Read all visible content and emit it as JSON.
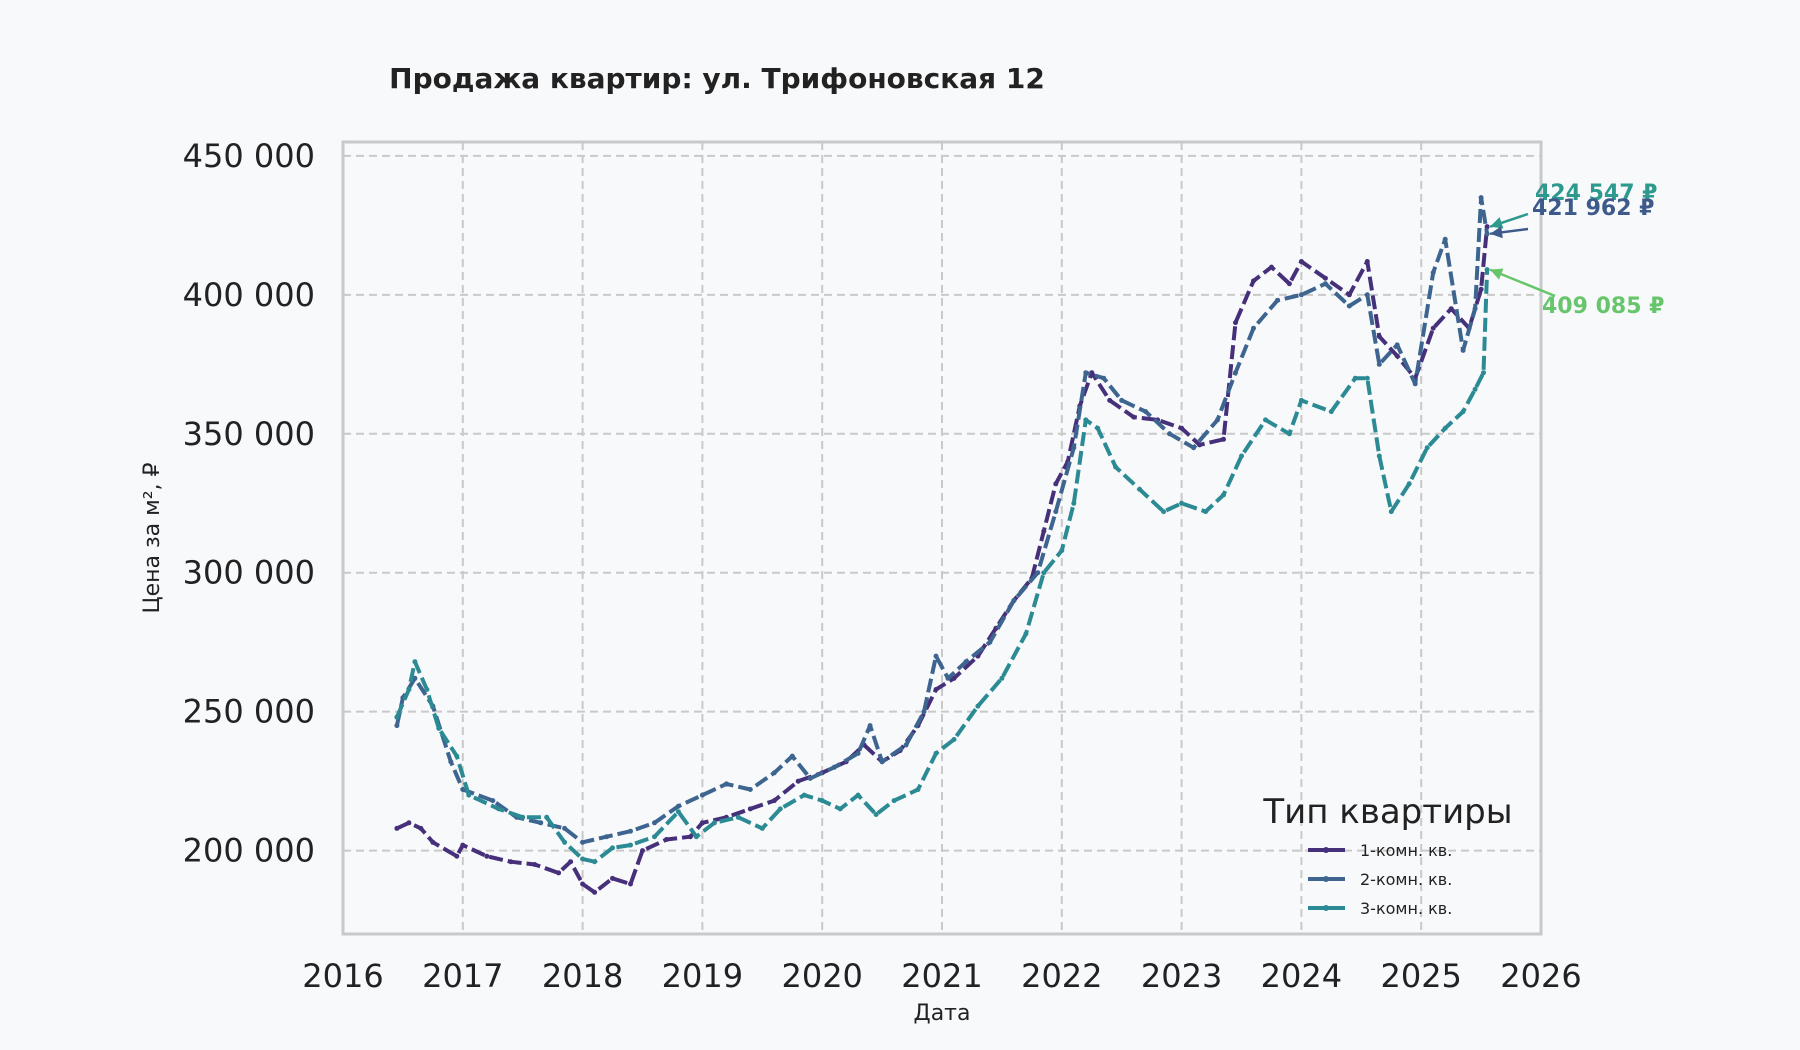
{
  "chart_data": {
    "type": "line",
    "title": "Продажа квартир: ул. Трифоновская 12",
    "xlabel": "Дата",
    "ylabel": "Цена за м², ₽",
    "xlim": [
      2016,
      2026
    ],
    "ylim": [
      170000,
      455000
    ],
    "x_ticks": [
      "2016",
      "2017",
      "2018",
      "2019",
      "2020",
      "2021",
      "2022",
      "2023",
      "2024",
      "2025",
      "2026"
    ],
    "y_ticks": [
      {
        "value": 200000,
        "label": "200 000"
      },
      {
        "value": 250000,
        "label": "250 000"
      },
      {
        "value": 300000,
        "label": "300 000"
      },
      {
        "value": 350000,
        "label": "350 000"
      },
      {
        "value": 400000,
        "label": "400 000"
      },
      {
        "value": 450000,
        "label": "450 000"
      }
    ],
    "grid": true,
    "legend": {
      "title": "Тип квартиры",
      "position": "bottom-right"
    },
    "series": [
      {
        "name": "1-комн. кв.",
        "color": "#46307a",
        "points": [
          [
            2016.45,
            208000
          ],
          [
            2016.55,
            210000
          ],
          [
            2016.65,
            208000
          ],
          [
            2016.75,
            203000
          ],
          [
            2016.95,
            198000
          ],
          [
            2017.0,
            202000
          ],
          [
            2017.2,
            198000
          ],
          [
            2017.4,
            196000
          ],
          [
            2017.6,
            195000
          ],
          [
            2017.8,
            192000
          ],
          [
            2017.9,
            196000
          ],
          [
            2018.0,
            188000
          ],
          [
            2018.1,
            185000
          ],
          [
            2018.25,
            190000
          ],
          [
            2018.4,
            188000
          ],
          [
            2018.5,
            200000
          ],
          [
            2018.7,
            204000
          ],
          [
            2018.9,
            205000
          ],
          [
            2019.0,
            210000
          ],
          [
            2019.2,
            212000
          ],
          [
            2019.4,
            215000
          ],
          [
            2019.6,
            218000
          ],
          [
            2019.8,
            225000
          ],
          [
            2020.0,
            228000
          ],
          [
            2020.2,
            232000
          ],
          [
            2020.35,
            238000
          ],
          [
            2020.5,
            232000
          ],
          [
            2020.65,
            236000
          ],
          [
            2020.8,
            245000
          ],
          [
            2020.95,
            258000
          ],
          [
            2021.1,
            262000
          ],
          [
            2021.3,
            270000
          ],
          [
            2021.45,
            280000
          ],
          [
            2021.6,
            290000
          ],
          [
            2021.75,
            298000
          ],
          [
            2021.85,
            315000
          ],
          [
            2021.95,
            332000
          ],
          [
            2022.05,
            340000
          ],
          [
            2022.15,
            360000
          ],
          [
            2022.25,
            372000
          ],
          [
            2022.4,
            362000
          ],
          [
            2022.6,
            356000
          ],
          [
            2022.8,
            355000
          ],
          [
            2023.0,
            352000
          ],
          [
            2023.15,
            346000
          ],
          [
            2023.35,
            348000
          ],
          [
            2023.45,
            390000
          ],
          [
            2023.6,
            405000
          ],
          [
            2023.75,
            410000
          ],
          [
            2023.9,
            404000
          ],
          [
            2024.0,
            412000
          ],
          [
            2024.2,
            406000
          ],
          [
            2024.4,
            400000
          ],
          [
            2024.55,
            412000
          ],
          [
            2024.65,
            385000
          ],
          [
            2024.8,
            378000
          ],
          [
            2024.95,
            370000
          ],
          [
            2025.1,
            388000
          ],
          [
            2025.25,
            395000
          ],
          [
            2025.4,
            388000
          ],
          [
            2025.5,
            402000
          ],
          [
            2025.55,
            424547
          ]
        ],
        "annotation": {
          "label": "424 547 ₽",
          "value": 424547
        }
      },
      {
        "name": "2-комн. кв.",
        "color": "#3d6590",
        "points": [
          [
            2016.45,
            245000
          ],
          [
            2016.5,
            255000
          ],
          [
            2016.6,
            262000
          ],
          [
            2016.75,
            252000
          ],
          [
            2016.9,
            232000
          ],
          [
            2017.0,
            222000
          ],
          [
            2017.25,
            218000
          ],
          [
            2017.45,
            212000
          ],
          [
            2017.65,
            210000
          ],
          [
            2017.85,
            208000
          ],
          [
            2018.0,
            203000
          ],
          [
            2018.2,
            205000
          ],
          [
            2018.4,
            207000
          ],
          [
            2018.6,
            210000
          ],
          [
            2018.8,
            216000
          ],
          [
            2019.0,
            220000
          ],
          [
            2019.2,
            224000
          ],
          [
            2019.4,
            222000
          ],
          [
            2019.6,
            228000
          ],
          [
            2019.75,
            234000
          ],
          [
            2019.9,
            226000
          ],
          [
            2020.1,
            230000
          ],
          [
            2020.3,
            235000
          ],
          [
            2020.4,
            245000
          ],
          [
            2020.5,
            232000
          ],
          [
            2020.7,
            238000
          ],
          [
            2020.85,
            250000
          ],
          [
            2020.95,
            270000
          ],
          [
            2021.05,
            262000
          ],
          [
            2021.2,
            268000
          ],
          [
            2021.4,
            275000
          ],
          [
            2021.6,
            290000
          ],
          [
            2021.8,
            300000
          ],
          [
            2021.95,
            322000
          ],
          [
            2022.1,
            345000
          ],
          [
            2022.2,
            372000
          ],
          [
            2022.35,
            370000
          ],
          [
            2022.5,
            362000
          ],
          [
            2022.7,
            358000
          ],
          [
            2022.9,
            350000
          ],
          [
            2023.1,
            345000
          ],
          [
            2023.3,
            355000
          ],
          [
            2023.45,
            372000
          ],
          [
            2023.6,
            388000
          ],
          [
            2023.8,
            398000
          ],
          [
            2024.0,
            400000
          ],
          [
            2024.2,
            404000
          ],
          [
            2024.4,
            396000
          ],
          [
            2024.55,
            400000
          ],
          [
            2024.65,
            375000
          ],
          [
            2024.8,
            382000
          ],
          [
            2024.95,
            368000
          ],
          [
            2025.1,
            408000
          ],
          [
            2025.2,
            420000
          ],
          [
            2025.35,
            380000
          ],
          [
            2025.45,
            395000
          ],
          [
            2025.5,
            435000
          ],
          [
            2025.55,
            421962
          ]
        ],
        "annotation": {
          "label": "421 962 ₽",
          "value": 421962
        }
      },
      {
        "name": "3-комн. кв.",
        "color": "#2b8a93",
        "points": [
          [
            2016.45,
            248000
          ],
          [
            2016.55,
            258000
          ],
          [
            2016.6,
            268000
          ],
          [
            2016.7,
            258000
          ],
          [
            2016.8,
            244000
          ],
          [
            2016.95,
            234000
          ],
          [
            2017.05,
            220000
          ],
          [
            2017.3,
            215000
          ],
          [
            2017.5,
            212000
          ],
          [
            2017.7,
            212000
          ],
          [
            2017.85,
            203000
          ],
          [
            2018.0,
            197000
          ],
          [
            2018.1,
            196000
          ],
          [
            2018.25,
            201000
          ],
          [
            2018.4,
            202000
          ],
          [
            2018.6,
            205000
          ],
          [
            2018.8,
            214000
          ],
          [
            2018.95,
            205000
          ],
          [
            2019.1,
            210000
          ],
          [
            2019.3,
            212000
          ],
          [
            2019.5,
            208000
          ],
          [
            2019.65,
            215000
          ],
          [
            2019.85,
            220000
          ],
          [
            2020.0,
            218000
          ],
          [
            2020.15,
            215000
          ],
          [
            2020.3,
            220000
          ],
          [
            2020.45,
            213000
          ],
          [
            2020.6,
            218000
          ],
          [
            2020.8,
            222000
          ],
          [
            2020.95,
            235000
          ],
          [
            2021.1,
            240000
          ],
          [
            2021.3,
            252000
          ],
          [
            2021.5,
            262000
          ],
          [
            2021.7,
            278000
          ],
          [
            2021.85,
            300000
          ],
          [
            2022.0,
            308000
          ],
          [
            2022.1,
            325000
          ],
          [
            2022.2,
            355000
          ],
          [
            2022.3,
            352000
          ],
          [
            2022.45,
            338000
          ],
          [
            2022.65,
            330000
          ],
          [
            2022.85,
            322000
          ],
          [
            2023.0,
            325000
          ],
          [
            2023.2,
            322000
          ],
          [
            2023.35,
            328000
          ],
          [
            2023.5,
            342000
          ],
          [
            2023.7,
            355000
          ],
          [
            2023.9,
            350000
          ],
          [
            2024.0,
            362000
          ],
          [
            2024.25,
            358000
          ],
          [
            2024.45,
            370000
          ],
          [
            2024.55,
            370000
          ],
          [
            2024.65,
            342000
          ],
          [
            2024.75,
            322000
          ],
          [
            2024.9,
            332000
          ],
          [
            2025.05,
            345000
          ],
          [
            2025.2,
            352000
          ],
          [
            2025.35,
            358000
          ],
          [
            2025.45,
            366000
          ],
          [
            2025.52,
            372000
          ],
          [
            2025.55,
            409085
          ]
        ],
        "annotation": {
          "label": "409 085 ₽",
          "value": 409085
        }
      }
    ]
  }
}
